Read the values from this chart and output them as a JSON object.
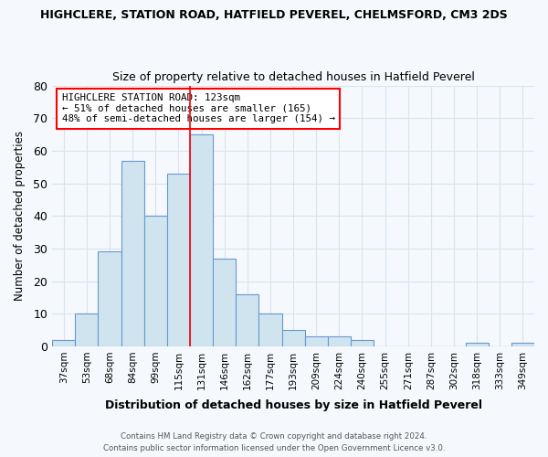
{
  "title": "HIGHCLERE, STATION ROAD, HATFIELD PEVEREL, CHELMSFORD, CM3 2DS",
  "subtitle": "Size of property relative to detached houses in Hatfield Peverel",
  "xlabel": "Distribution of detached houses by size in Hatfield Peverel",
  "ylabel": "Number of detached properties",
  "categories": [
    "37sqm",
    "53sqm",
    "68sqm",
    "84sqm",
    "99sqm",
    "115sqm",
    "131sqm",
    "146sqm",
    "162sqm",
    "177sqm",
    "193sqm",
    "209sqm",
    "224sqm",
    "240sqm",
    "255sqm",
    "271sqm",
    "287sqm",
    "302sqm",
    "318sqm",
    "333sqm",
    "349sqm"
  ],
  "values": [
    2,
    10,
    29,
    57,
    40,
    53,
    65,
    27,
    16,
    10,
    5,
    3,
    3,
    2,
    0,
    0,
    0,
    0,
    1,
    0,
    1
  ],
  "bar_color": "#d0e4f0",
  "bar_edge_color": "#6699cc",
  "red_line_x": 5.5,
  "annotation_title": "HIGHCLERE STATION ROAD: 123sqm",
  "annotation_line1": "← 51% of detached houses are smaller (165)",
  "annotation_line2": "48% of semi-detached houses are larger (154) →",
  "footnote1": "Contains HM Land Registry data © Crown copyright and database right 2024.",
  "footnote2": "Contains public sector information licensed under the Open Government Licence v3.0.",
  "bg_color": "#f5f8fc",
  "grid_color": "#d8e4ee",
  "ylim": [
    0,
    80
  ],
  "yticks": [
    0,
    10,
    20,
    30,
    40,
    50,
    60,
    70,
    80
  ]
}
